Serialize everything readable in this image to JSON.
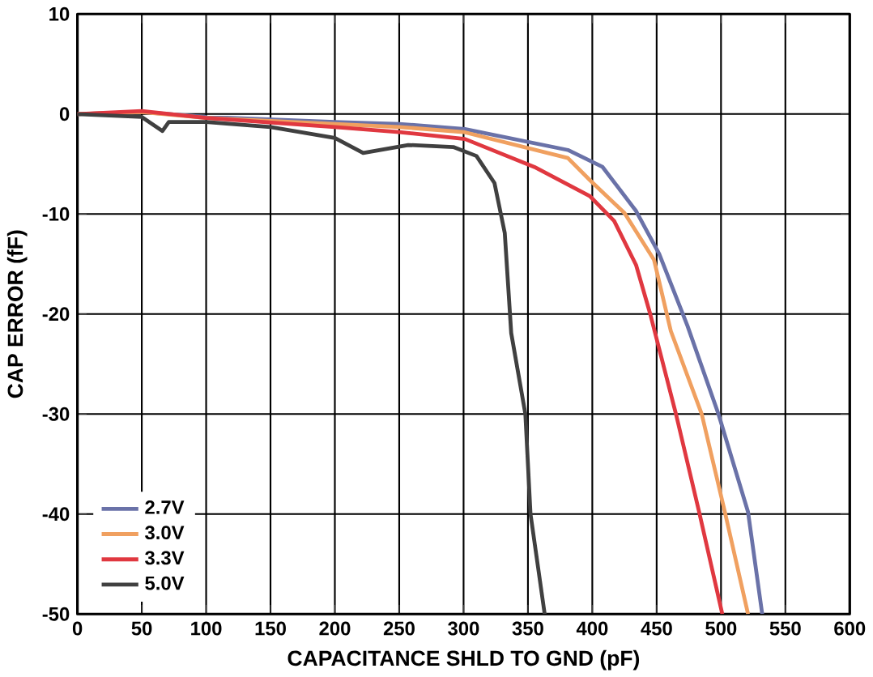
{
  "chart_data": {
    "type": "line",
    "xlabel": "CAPACITANCE SHLD TO GND (pF)",
    "ylabel": "CAP ERROR (fF)",
    "xlim": [
      0,
      600
    ],
    "ylim": [
      -50,
      10
    ],
    "xticks": [
      0,
      50,
      100,
      150,
      200,
      250,
      300,
      350,
      400,
      450,
      500,
      550,
      600
    ],
    "yticks": [
      -50,
      -40,
      -30,
      -20,
      -10,
      0,
      10
    ],
    "grid": true,
    "legend": "bottom left",
    "marker": "none",
    "line_style": "solid",
    "series": [
      {
        "name": "2.7V",
        "color": "#6a72a8",
        "x": [
          0,
          50,
          100,
          200,
          250,
          301,
          381,
          408,
          434,
          452,
          474,
          498,
          521,
          532
        ],
        "values": [
          0,
          0.2,
          -0.3,
          -0.8,
          -1.0,
          -1.5,
          -3.6,
          -5.3,
          -9.7,
          -14,
          -21.2,
          -30,
          -39.8,
          -50
        ]
      },
      {
        "name": "3.0V",
        "color": "#f0a060",
        "x": [
          0,
          50,
          100,
          200,
          250,
          300,
          381,
          398,
          425,
          448,
          461,
          485,
          503,
          521
        ],
        "values": [
          0,
          0.2,
          -0.4,
          -1.0,
          -1.3,
          -1.8,
          -4.4,
          -6.6,
          -9.9,
          -14.6,
          -21.7,
          -30,
          -39.8,
          -50
        ]
      },
      {
        "name": "3.3V",
        "color": "#e03840",
        "x": [
          0,
          50,
          100,
          200,
          250,
          301,
          355,
          398,
          417,
          434,
          445,
          465,
          483,
          501
        ],
        "values": [
          0,
          0.3,
          -0.4,
          -1.3,
          -1.8,
          -2.5,
          -5.3,
          -8.2,
          -10.7,
          -15.1,
          -20,
          -30,
          -39.8,
          -50
        ]
      },
      {
        "name": "5.0V",
        "color": "#404040",
        "x": [
          0,
          50,
          66,
          71,
          100,
          150,
          200,
          222,
          257,
          292,
          310,
          324,
          332,
          337,
          348,
          352,
          363
        ],
        "values": [
          0,
          -0.3,
          -1.7,
          -0.8,
          -0.8,
          -1.3,
          -2.4,
          -3.9,
          -3.1,
          -3.3,
          -4.2,
          -6.9,
          -11.9,
          -21.9,
          -30,
          -40,
          -50
        ]
      }
    ]
  }
}
